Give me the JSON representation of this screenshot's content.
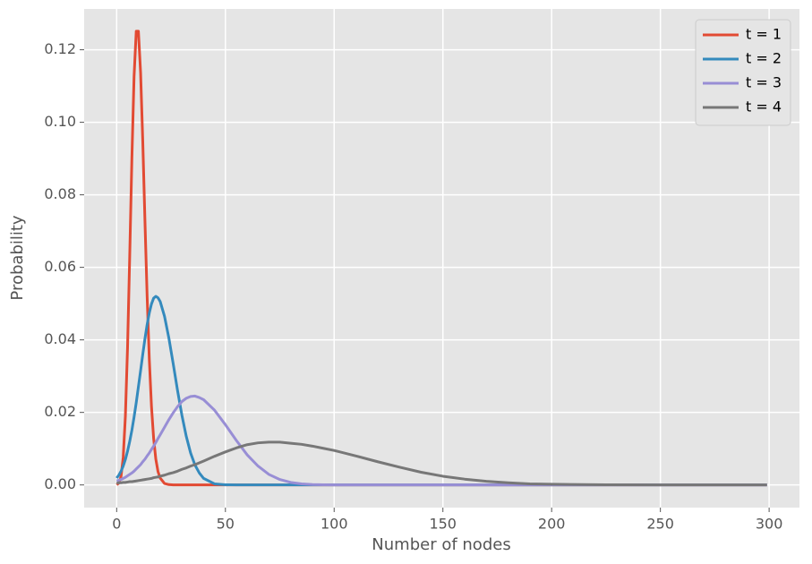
{
  "chart_data": {
    "type": "line",
    "x_label": "Number of nodes",
    "y_label": "Probability",
    "x": [
      0,
      1,
      2,
      3,
      4,
      5,
      6,
      7,
      8,
      9,
      10,
      11,
      12,
      13,
      14,
      15,
      16,
      17,
      18,
      19,
      20,
      22,
      24,
      26,
      28,
      30,
      32,
      34,
      36,
      38,
      40,
      45,
      50,
      55,
      60,
      65,
      70,
      75,
      80,
      85,
      90,
      95,
      100,
      110,
      120,
      130,
      140,
      150,
      160,
      170,
      180,
      190,
      200,
      225,
      250,
      275,
      299
    ],
    "series": [
      {
        "name": "t = 1",
        "color": "#E24A33",
        "values": [
          5e-05,
          0.0005,
          0.0023,
          0.0076,
          0.0189,
          0.0378,
          0.0631,
          0.0901,
          0.1126,
          0.1251,
          0.1251,
          0.1137,
          0.0948,
          0.0729,
          0.0521,
          0.0347,
          0.0217,
          0.0128,
          0.0071,
          0.0037,
          0.0019,
          0.0004,
          0.0001,
          2e-05,
          0,
          0,
          0,
          0,
          0,
          0,
          0,
          0,
          0,
          0,
          0,
          0,
          0,
          0,
          0,
          0,
          0,
          0,
          0,
          0,
          0,
          0,
          0,
          0,
          0,
          0,
          0,
          0,
          0,
          0,
          0,
          0,
          0
        ]
      },
      {
        "name": "t = 2",
        "color": "#348ABD",
        "values": [
          0.0019,
          0.0027,
          0.0038,
          0.0052,
          0.007,
          0.0093,
          0.012,
          0.0151,
          0.0187,
          0.0227,
          0.0271,
          0.0315,
          0.036,
          0.0403,
          0.0442,
          0.0474,
          0.0499,
          0.0515,
          0.052,
          0.0516,
          0.0506,
          0.0465,
          0.0405,
          0.0334,
          0.026,
          0.0192,
          0.0134,
          0.0088,
          0.0055,
          0.0033,
          0.0018,
          0.0003,
          4e-05,
          0,
          0,
          0,
          0,
          0,
          0,
          0,
          0,
          0,
          0,
          0,
          0,
          0,
          0,
          0,
          0,
          0,
          0,
          0,
          0,
          0,
          0,
          0,
          0
        ]
      },
      {
        "name": "t = 3",
        "color": "#988ED5",
        "values": [
          0.0011,
          0.0013,
          0.0015,
          0.0018,
          0.0021,
          0.0025,
          0.0029,
          0.0033,
          0.0038,
          0.0044,
          0.005,
          0.0056,
          0.0064,
          0.0071,
          0.008,
          0.0088,
          0.0098,
          0.0107,
          0.0117,
          0.0128,
          0.0138,
          0.0159,
          0.018,
          0.0199,
          0.0216,
          0.023,
          0.0239,
          0.0244,
          0.0245,
          0.0241,
          0.0235,
          0.0206,
          0.0166,
          0.0123,
          0.0083,
          0.0052,
          0.0029,
          0.0015,
          0.0007,
          0.0003,
          0.0001,
          5e-05,
          0,
          0,
          0,
          0,
          0,
          0,
          0,
          0,
          0,
          0,
          0,
          0,
          0,
          0,
          0
        ]
      },
      {
        "name": "t = 4",
        "color": "#777777",
        "values": [
          0.0005,
          0.0006,
          0.0006,
          0.0007,
          0.0007,
          0.0008,
          0.0009,
          0.0009,
          0.001,
          0.0011,
          0.0012,
          0.0013,
          0.0014,
          0.0015,
          0.0016,
          0.0017,
          0.0018,
          0.002,
          0.0021,
          0.0022,
          0.0024,
          0.0027,
          0.0031,
          0.0034,
          0.0038,
          0.0043,
          0.0047,
          0.0052,
          0.0056,
          0.0061,
          0.0066,
          0.0079,
          0.0091,
          0.0102,
          0.0111,
          0.0116,
          0.0118,
          0.0118,
          0.0115,
          0.0112,
          0.0107,
          0.0101,
          0.0095,
          0.008,
          0.0064,
          0.0049,
          0.0035,
          0.0024,
          0.0016,
          0.001,
          0.0006,
          0.0003,
          0.0002,
          3e-05,
          0,
          0,
          0
        ]
      }
    ],
    "xlim": [
      -14.95,
      313.95
    ],
    "xticks": [
      0,
      50,
      100,
      150,
      200,
      250,
      300
    ],
    "ylim": [
      -0.00625,
      0.13125
    ],
    "yticks": [
      {
        "value": 0,
        "label": "0.00"
      },
      {
        "value": 0.02,
        "label": "0.02"
      },
      {
        "value": 0.04,
        "label": "0.04"
      },
      {
        "value": 0.06,
        "label": "0.06"
      },
      {
        "value": 0.08,
        "label": "0.08"
      },
      {
        "value": 0.1,
        "label": "0.10"
      },
      {
        "value": 0.12,
        "label": "0.12"
      }
    ],
    "grid": true,
    "legend_position": "upper-right"
  }
}
